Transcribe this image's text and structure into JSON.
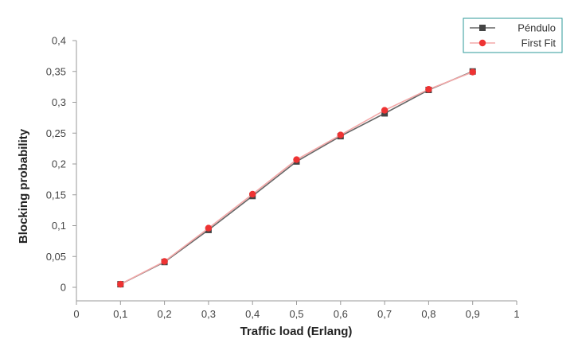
{
  "chart_data": {
    "type": "line",
    "xlabel": "Traffic load (Erlang)",
    "ylabel": "Blocking probability",
    "xlim": [
      0,
      1
    ],
    "ylim": [
      0,
      0.4
    ],
    "x_tick_labels": [
      "0",
      "0,1",
      "0,2",
      "0,3",
      "0,4",
      "0,5",
      "0,6",
      "0,7",
      "0,8",
      "0,9",
      "1"
    ],
    "y_tick_labels": [
      "0",
      "0,05",
      "0,1",
      "0,15",
      "0,2",
      "0,25",
      "0,3",
      "0,35",
      "0,4"
    ],
    "grid": false,
    "legend_position": "top-right",
    "series": [
      {
        "name": "Péndulo",
        "color": "#666666",
        "marker": "square",
        "x": [
          0.1,
          0.2,
          0.3,
          0.4,
          0.5,
          0.6,
          0.7,
          0.8,
          0.9
        ],
        "values": [
          0.005,
          0.041,
          0.093,
          0.148,
          0.204,
          0.245,
          0.282,
          0.32,
          0.35
        ]
      },
      {
        "name": "First Fit",
        "color": "#ee3333",
        "line_color": "#f4a8a8",
        "marker": "circle",
        "x": [
          0.1,
          0.2,
          0.3,
          0.4,
          0.5,
          0.6,
          0.7,
          0.8,
          0.9
        ],
        "values": [
          0.005,
          0.042,
          0.096,
          0.151,
          0.207,
          0.247,
          0.287,
          0.321,
          0.349
        ]
      }
    ]
  }
}
